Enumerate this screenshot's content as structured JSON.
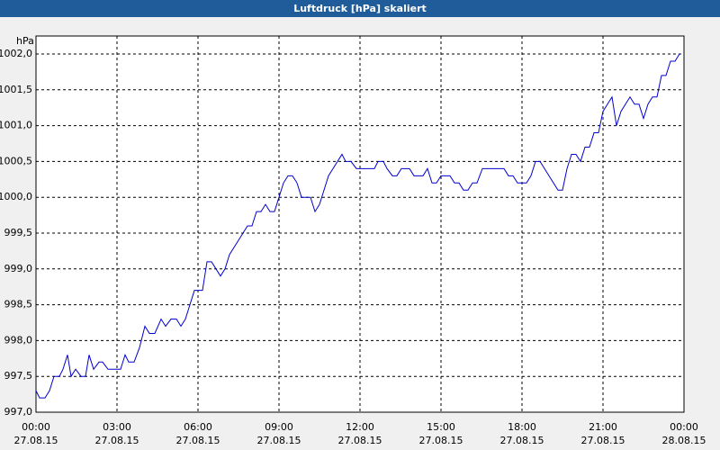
{
  "chart_data": {
    "type": "line",
    "title": "Luftdruck [hPa] skaliert",
    "y_unit_label": "hPa",
    "xlim": [
      0,
      1440
    ],
    "xticks": [
      {
        "value": 0,
        "label": "00:00"
      },
      {
        "value": 180,
        "label": "03:00"
      },
      {
        "value": 360,
        "label": "06:00"
      },
      {
        "value": 540,
        "label": "09:00"
      },
      {
        "value": 720,
        "label": "12:00"
      },
      {
        "value": 900,
        "label": "15:00"
      },
      {
        "value": 1080,
        "label": "18:00"
      },
      {
        "value": 1260,
        "label": "21:00"
      },
      {
        "value": 1440,
        "label": "00:00"
      }
    ],
    "xtick_dates": [
      "27.08.15",
      "27.08.15",
      "27.08.15",
      "27.08.15",
      "27.08.15",
      "27.08.15",
      "27.08.15",
      "27.08.15",
      "28.08.15"
    ],
    "ylim": [
      997,
      1002
    ],
    "yticks": [
      {
        "value": 997,
        "label": "997,0"
      },
      {
        "value": 997.5,
        "label": "997,5"
      },
      {
        "value": 998,
        "label": "998,0"
      },
      {
        "value": 998.5,
        "label": "998,5"
      },
      {
        "value": 999,
        "label": "999,0"
      },
      {
        "value": 999.5,
        "label": "999,5"
      },
      {
        "value": 1000,
        "label": "1000,0"
      },
      {
        "value": 1000.5,
        "label": "1000,5"
      },
      {
        "value": 1001,
        "label": "1001,0"
      },
      {
        "value": 1001.5,
        "label": "1001,5"
      },
      {
        "value": 1002,
        "label": "1002,0"
      }
    ],
    "grid": true,
    "series": [
      {
        "name": "Luftdruck",
        "color": "#0000cc",
        "x": [
          0,
          8,
          20,
          30,
          40,
          52,
          60,
          70,
          78,
          88,
          100,
          110,
          118,
          128,
          140,
          148,
          160,
          188,
          198,
          206,
          218,
          230,
          242,
          252,
          264,
          278,
          288,
          300,
          312,
          322,
          332,
          342,
          352,
          370,
          380,
          390,
          400,
          410,
          420,
          430,
          450,
          460,
          470,
          480,
          490,
          500,
          510,
          520,
          530,
          540,
          550,
          560,
          570,
          580,
          590,
          610,
          620,
          630,
          640,
          650,
          660,
          670,
          680,
          688,
          700,
          712,
          752,
          760,
          772,
          780,
          792,
          802,
          812,
          830,
          840,
          860,
          870,
          880,
          890,
          900,
          920,
          930,
          940,
          950,
          960,
          970,
          980,
          992,
          1040,
          1050,
          1060,
          1070,
          1090,
          1100,
          1110,
          1120,
          1130,
          1160,
          1170,
          1180,
          1190,
          1200,
          1210,
          1220,
          1230,
          1240,
          1250,
          1260,
          1270,
          1280,
          1290,
          1300,
          1310,
          1320,
          1330,
          1340,
          1350,
          1360,
          1370,
          1380,
          1390,
          1400,
          1410,
          1420,
          1430
        ],
        "values": [
          997.3,
          997.2,
          997.2,
          997.3,
          997.5,
          997.5,
          997.6,
          997.8,
          997.5,
          997.6,
          997.5,
          997.5,
          997.8,
          997.6,
          997.7,
          997.7,
          997.6,
          997.6,
          997.8,
          997.7,
          997.7,
          997.9,
          998.2,
          998.1,
          998.1,
          998.3,
          998.2,
          998.3,
          998.3,
          998.2,
          998.3,
          998.5,
          998.7,
          998.7,
          999.1,
          999.1,
          999.0,
          998.9,
          999.0,
          999.2,
          999.4,
          999.5,
          999.6,
          999.6,
          999.8,
          999.8,
          999.9,
          999.8,
          999.8,
          1000.0,
          1000.2,
          1000.3,
          1000.3,
          1000.2,
          1000.0,
          1000.0,
          999.8,
          999.9,
          1000.1,
          1000.3,
          1000.4,
          1000.5,
          1000.6,
          1000.5,
          1000.5,
          1000.4,
          1000.4,
          1000.5,
          1000.5,
          1000.4,
          1000.3,
          1000.3,
          1000.4,
          1000.4,
          1000.3,
          1000.3,
          1000.4,
          1000.2,
          1000.2,
          1000.3,
          1000.3,
          1000.2,
          1000.2,
          1000.1,
          1000.1,
          1000.2,
          1000.2,
          1000.4,
          1000.4,
          1000.3,
          1000.3,
          1000.2,
          1000.2,
          1000.3,
          1000.5,
          1000.5,
          1000.4,
          1000.1,
          1000.1,
          1000.4,
          1000.6,
          1000.6,
          1000.5,
          1000.7,
          1000.7,
          1000.9,
          1000.9,
          1001.2,
          1001.3,
          1001.4,
          1001.0,
          1001.2,
          1001.3,
          1001.4,
          1001.3,
          1001.3,
          1001.1,
          1001.3,
          1001.4,
          1001.4,
          1001.7,
          1001.7,
          1001.9,
          1001.9,
          1002.0
        ]
      }
    ]
  }
}
